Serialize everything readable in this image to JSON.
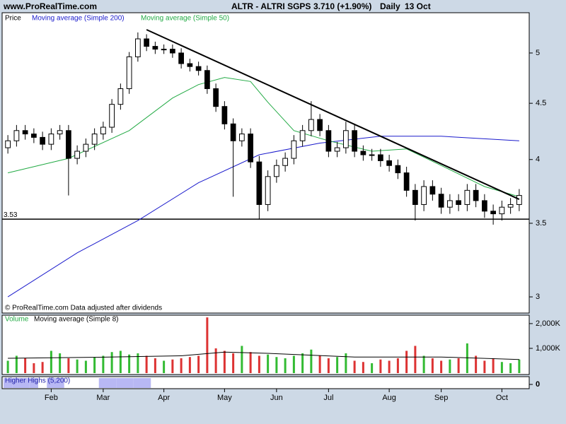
{
  "chart_data": [
    {
      "type": "candlestick",
      "site": "www.ProRealTime.com",
      "title": "ALTR - ALTRI SGPS",
      "price_label": "3.710 (+1.90%)",
      "period": "Daily",
      "date": "13 Oct",
      "legend_label": "Price",
      "note": "© ProRealTime.com Data adjusted after dividends",
      "categories": [
        null,
        null,
        null,
        null,
        null,
        "Feb",
        null,
        null,
        null,
        null,
        null,
        "Mar",
        null,
        null,
        null,
        null,
        null,
        null,
        "Apr",
        null,
        null,
        null,
        null,
        null,
        null,
        "May",
        null,
        null,
        null,
        null,
        null,
        "Jun",
        null,
        null,
        null,
        null,
        null,
        "Jul",
        null,
        null,
        null,
        null,
        null,
        null,
        "Aug",
        null,
        null,
        null,
        null,
        null,
        "Sep",
        null,
        null,
        null,
        null,
        null,
        null,
        "Oct",
        null,
        null
      ],
      "open": [
        4.1,
        4.16,
        4.25,
        4.22,
        4.19,
        4.13,
        4.22,
        4.25,
        4.01,
        4.07,
        4.13,
        4.22,
        4.28,
        4.49,
        4.64,
        4.96,
        5.15,
        5.07,
        5.04,
        5.04,
        5.0,
        4.89,
        4.86,
        4.82,
        4.64,
        4.47,
        4.31,
        4.16,
        4.22,
        3.98,
        3.64,
        3.86,
        3.95,
        4.01,
        4.16,
        4.25,
        4.35,
        4.25,
        4.07,
        4.1,
        4.25,
        4.07,
        4.04,
        4.04,
        3.99,
        3.95,
        3.89,
        3.75,
        3.64,
        3.78,
        3.72,
        3.62,
        3.67,
        3.64,
        3.75,
        3.67,
        3.59,
        3.57,
        3.62,
        3.64
      ],
      "high": [
        4.21,
        4.3,
        4.3,
        4.27,
        4.24,
        4.27,
        4.3,
        4.3,
        4.12,
        4.18,
        4.27,
        4.33,
        4.54,
        4.69,
        5.01,
        5.22,
        5.2,
        5.12,
        5.09,
        5.09,
        5.05,
        4.94,
        4.91,
        4.87,
        4.69,
        4.52,
        4.36,
        4.27,
        4.27,
        4.03,
        3.91,
        4.0,
        4.06,
        4.21,
        4.3,
        4.52,
        4.4,
        4.3,
        4.15,
        4.33,
        4.3,
        4.12,
        4.09,
        4.09,
        4.04,
        4.0,
        3.94,
        3.8,
        3.83,
        3.83,
        3.77,
        3.72,
        3.72,
        3.8,
        3.8,
        3.72,
        3.64,
        3.67,
        3.69,
        3.76
      ],
      "low": [
        4.05,
        4.11,
        4.17,
        4.14,
        4.08,
        4.08,
        4.17,
        3.71,
        3.96,
        4.02,
        4.08,
        4.17,
        4.23,
        4.44,
        4.59,
        4.91,
        5.02,
        4.99,
        4.99,
        4.95,
        4.84,
        4.81,
        4.77,
        4.59,
        4.42,
        4.26,
        3.7,
        4.11,
        3.93,
        3.53,
        3.59,
        3.81,
        3.9,
        3.96,
        4.11,
        4.2,
        4.2,
        4.02,
        4.02,
        4.05,
        4.02,
        3.99,
        3.99,
        3.94,
        3.9,
        3.84,
        3.7,
        3.52,
        3.59,
        3.67,
        3.57,
        3.57,
        3.59,
        3.59,
        3.62,
        3.54,
        3.49,
        3.52,
        3.57,
        3.59
      ],
      "close": [
        4.16,
        4.25,
        4.22,
        4.19,
        4.13,
        4.22,
        4.25,
        4.01,
        4.07,
        4.13,
        4.22,
        4.28,
        4.49,
        4.64,
        4.96,
        5.15,
        5.07,
        5.04,
        5.04,
        5.0,
        4.89,
        4.86,
        4.82,
        4.64,
        4.47,
        4.31,
        4.16,
        4.22,
        3.98,
        3.64,
        3.86,
        3.95,
        4.01,
        4.16,
        4.25,
        4.35,
        4.25,
        4.07,
        4.1,
        4.25,
        4.07,
        4.04,
        4.04,
        3.99,
        3.95,
        3.89,
        3.75,
        3.64,
        3.78,
        3.72,
        3.62,
        3.67,
        3.64,
        3.75,
        3.67,
        3.59,
        3.57,
        3.62,
        3.64,
        3.71
      ],
      "ylim": [
        2.9,
        5.44
      ],
      "yticks": [
        3,
        3.5,
        4,
        4.5,
        5
      ],
      "log_scale": true,
      "series": [
        {
          "name": "Moving average (Simple 200)",
          "color": "#1a1acc",
          "x": [
            0,
            8,
            15,
            22,
            29,
            36,
            43,
            50,
            59
          ],
          "values": [
            3.0,
            3.29,
            3.52,
            3.81,
            4.04,
            4.14,
            4.2,
            4.2,
            4.16
          ]
        },
        {
          "name": "Moving average (Simple 50)",
          "color": "#22aa44",
          "x": [
            0,
            7,
            14,
            19,
            22,
            25,
            28,
            30,
            33,
            37,
            42,
            46,
            50,
            55,
            59
          ],
          "values": [
            3.89,
            4.01,
            4.25,
            4.55,
            4.68,
            4.75,
            4.71,
            4.51,
            4.25,
            4.16,
            4.07,
            4.09,
            3.95,
            3.78,
            3.7
          ]
        }
      ],
      "hline": 3.53,
      "trendline": {
        "x": [
          16,
          59
        ],
        "values": [
          5.25,
          3.68
        ]
      }
    },
    {
      "type": "bar",
      "label": "Volume",
      "label_color": "#22aa44",
      "up_color": "#33bb33",
      "down_color": "#dd3333",
      "values": [
        500000,
        700000,
        600000,
        400000,
        450000,
        900000,
        800000,
        600000,
        550000,
        500000,
        650000,
        700000,
        850000,
        900000,
        750000,
        800000,
        700000,
        600000,
        500000,
        550000,
        600000,
        650000,
        700000,
        2250000,
        1000000,
        900000,
        800000,
        1100000,
        850000,
        700000,
        750000,
        650000,
        600000,
        700000,
        800000,
        950000,
        700000,
        600000,
        650000,
        800000,
        500000,
        450000,
        400000,
        550000,
        500000,
        600000,
        900000,
        1100000,
        700000,
        600000,
        500000,
        550000,
        600000,
        1200000,
        700000,
        500000,
        600000,
        450000,
        400000,
        550000
      ],
      "ylim": [
        0,
        2340000
      ],
      "yticks": [
        {
          "value": 1000000,
          "label": "1,000K"
        },
        {
          "value": 2000000,
          "label": "2,000K"
        }
      ],
      "series": [
        {
          "name": "Moving average (Simple 8)",
          "color": "#000000",
          "x": [
            0,
            10,
            20,
            25,
            30,
            40,
            50,
            59
          ],
          "values": [
            600000,
            640000,
            700000,
            850000,
            800000,
            650000,
            650000,
            550000
          ]
        }
      ]
    },
    {
      "type": "area",
      "label": "Higher Highs (5,200)",
      "color": "#b8b8f4",
      "values": [
        1,
        1,
        1,
        1,
        0,
        1,
        1,
        0,
        0,
        0,
        0,
        1,
        1,
        1,
        1,
        1,
        1,
        0,
        0,
        0,
        0,
        0,
        0,
        0,
        0,
        0,
        0,
        0,
        0,
        0,
        0,
        0,
        0,
        0,
        0,
        0,
        0,
        0,
        0,
        0,
        0,
        0,
        0,
        0,
        0,
        0,
        0,
        0,
        0,
        0,
        0,
        0,
        0,
        0,
        0,
        0,
        0,
        0,
        0,
        0
      ],
      "ylim": [
        0,
        1
      ],
      "yticks": [
        0
      ]
    }
  ]
}
